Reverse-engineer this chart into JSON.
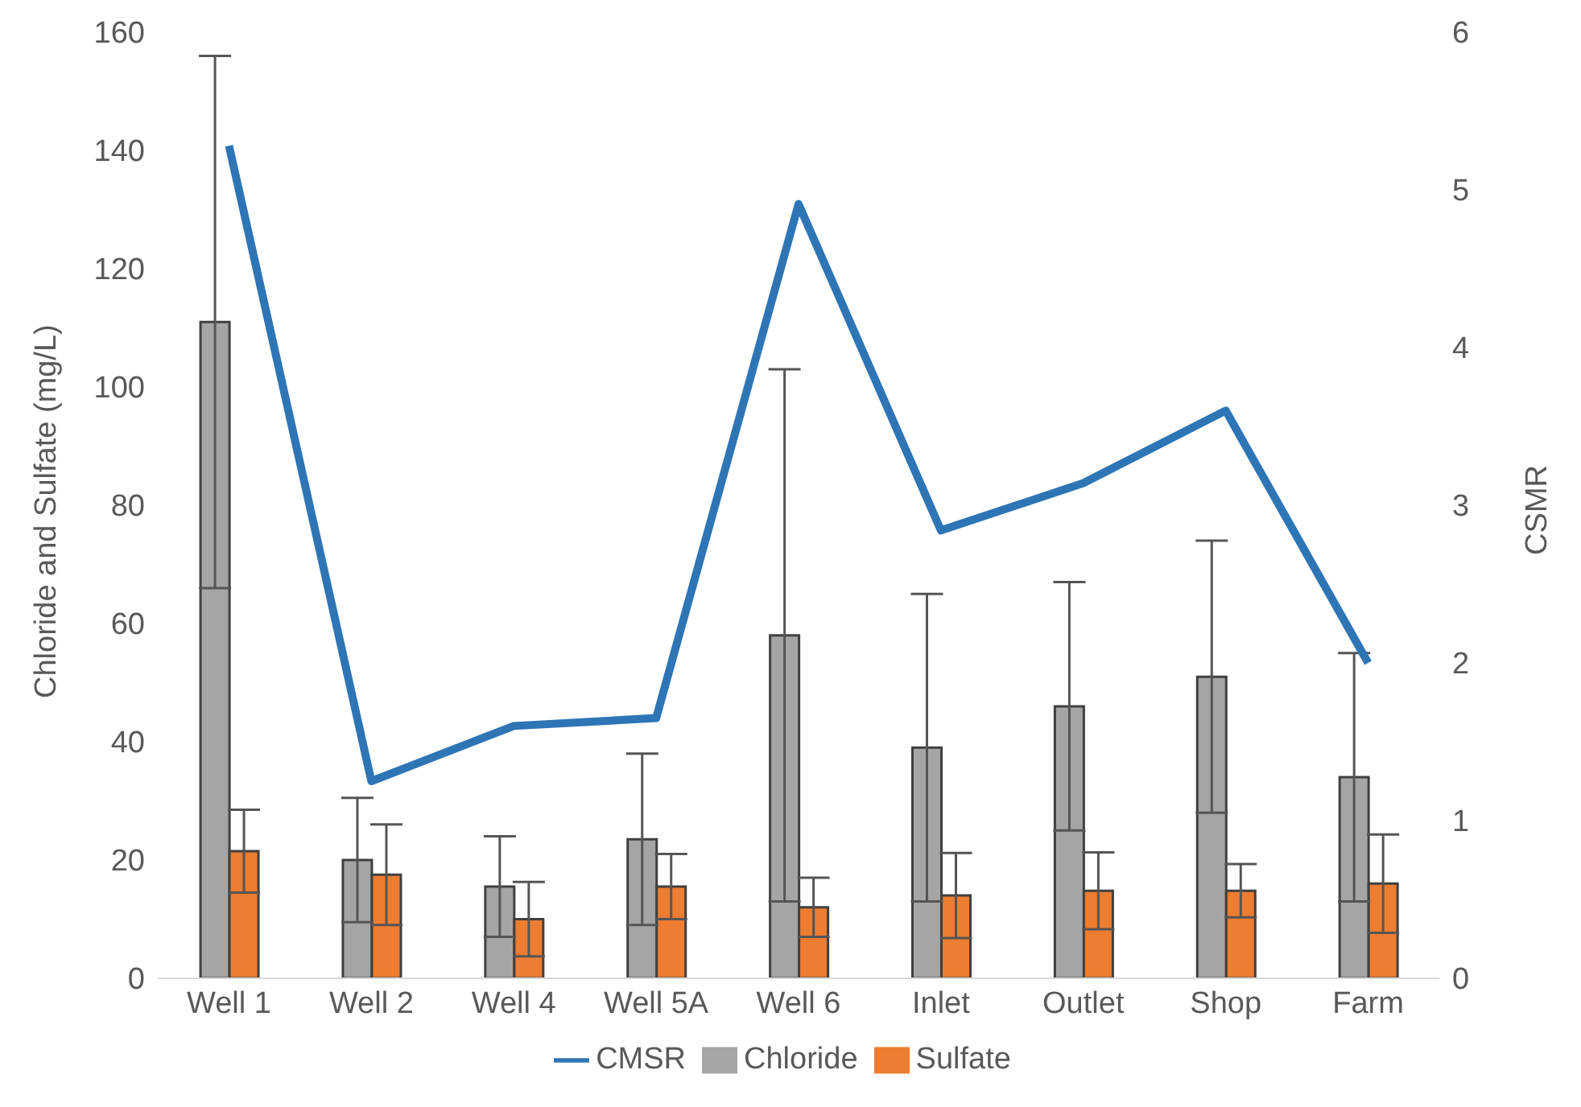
{
  "chart_data": {
    "type": "bar",
    "categories": [
      "Well 1",
      "Well 2",
      "Well 4",
      "Well 5A",
      "Well 6",
      "Inlet",
      "Outlet",
      "Shop",
      "Farm"
    ],
    "ylabel": "Chloride and Sulfate (mg/L)",
    "y2label": "CSMR",
    "ylim": [
      0,
      160
    ],
    "yticks": [
      0,
      20,
      40,
      60,
      80,
      100,
      120,
      140,
      160
    ],
    "y2lim": [
      0,
      6
    ],
    "y2ticks": [
      0,
      1,
      2,
      3,
      4,
      5,
      6
    ],
    "grid": false,
    "legend": "bottom",
    "series": [
      {
        "name": "Chloride",
        "color": "#a5a5a5",
        "values": [
          111,
          20,
          15.5,
          23.5,
          58,
          39,
          46,
          51,
          34
        ],
        "errors": [
          45,
          10.5,
          8.5,
          14.5,
          45,
          26,
          21,
          23,
          21
        ]
      },
      {
        "name": "Sulfate",
        "color": "#ed7d31",
        "values": [
          21.5,
          17.5,
          10,
          15.5,
          12,
          14,
          14.8,
          14.8,
          16
        ],
        "errors": [
          7,
          8.5,
          6.3,
          5.5,
          5,
          7.2,
          6.5,
          4.5,
          8.3
        ]
      },
      {
        "name": "CMSR",
        "type": "line",
        "axis": "y2",
        "color": "#2e75b6",
        "values": [
          5.28,
          1.25,
          1.6,
          1.65,
          4.91,
          2.84,
          3.14,
          3.6,
          2.0
        ]
      }
    ]
  }
}
